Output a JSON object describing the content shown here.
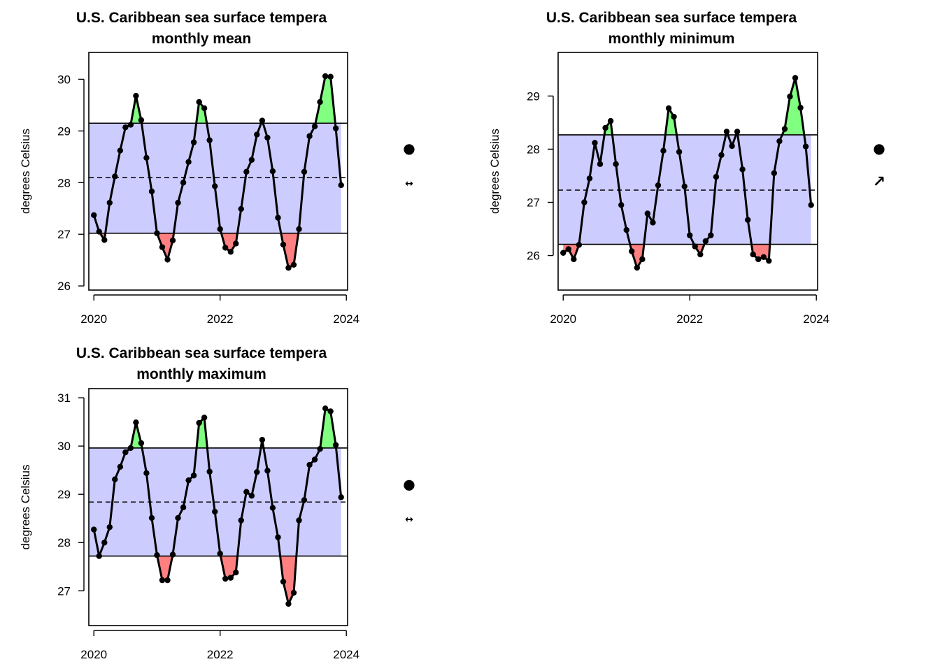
{
  "chart_data": [
    {
      "type": "line",
      "title_line1": "U.S. Caribbean sea surface tempera",
      "title_line2": "monthly mean",
      "ylabel": "degrees Celsius",
      "xlim": [
        2019.92,
        2024.02
      ],
      "ylim": [
        25.92,
        30.52
      ],
      "xticks": [
        "2020",
        "2022",
        "2024"
      ],
      "yticks": [
        "26",
        "27",
        "28",
        "29",
        "30"
      ],
      "upper": 29.15,
      "lower": 27.02,
      "mean": 28.1,
      "trend_symbol": "●",
      "trend_direction_symbol": "↔",
      "shade_color": "#CCCCFF",
      "above_color": "#80FF80",
      "below_color": "#FF8080",
      "series": [
        {
          "x": [
            2020.0,
            2020.083,
            2020.167,
            2020.25,
            2020.333,
            2020.417,
            2020.5,
            2020.583,
            2020.667,
            2020.75,
            2020.833,
            2020.917,
            2021.0,
            2021.083,
            2021.167,
            2021.25,
            2021.333,
            2021.417,
            2021.5,
            2021.583,
            2021.667,
            2021.75,
            2021.833,
            2021.917,
            2022.0,
            2022.083,
            2022.167,
            2022.25,
            2022.333,
            2022.417,
            2022.5,
            2022.583,
            2022.667,
            2022.75,
            2022.833,
            2022.917,
            2023.0,
            2023.083,
            2023.167,
            2023.25,
            2023.333,
            2023.417,
            2023.5,
            2023.583,
            2023.667,
            2023.75,
            2023.833,
            2023.917
          ],
          "y": [
            27.37,
            27.05,
            26.89,
            27.61,
            28.12,
            28.62,
            29.07,
            29.12,
            29.68,
            29.21,
            28.48,
            27.83,
            27.02,
            26.75,
            26.51,
            26.88,
            27.61,
            28.0,
            28.4,
            28.78,
            29.56,
            29.44,
            28.82,
            27.93,
            27.1,
            26.74,
            26.66,
            26.82,
            27.49,
            28.21,
            28.44,
            28.93,
            29.2,
            28.87,
            28.22,
            27.32,
            26.8,
            26.35,
            26.41,
            27.1,
            28.21,
            28.9,
            29.09,
            29.56,
            30.06,
            30.05,
            29.05,
            27.95
          ]
        }
      ]
    },
    {
      "type": "line",
      "title_line1": "U.S. Caribbean sea surface tempera",
      "title_line2": "monthly minimum",
      "ylabel": "degrees Celsius",
      "xlim": [
        2019.92,
        2024.02
      ],
      "ylim": [
        25.35,
        29.82
      ],
      "xticks": [
        "2020",
        "2022",
        "2024"
      ],
      "yticks": [
        "26",
        "27",
        "28",
        "29"
      ],
      "upper": 28.27,
      "lower": 26.21,
      "mean": 27.23,
      "trend_symbol": "●",
      "trend_direction_symbol": "↗",
      "shade_color": "#CCCCFF",
      "above_color": "#80FF80",
      "below_color": "#FF8080",
      "series": [
        {
          "x": [
            2020.0,
            2020.083,
            2020.167,
            2020.25,
            2020.333,
            2020.417,
            2020.5,
            2020.583,
            2020.667,
            2020.75,
            2020.833,
            2020.917,
            2021.0,
            2021.083,
            2021.167,
            2021.25,
            2021.333,
            2021.417,
            2021.5,
            2021.583,
            2021.667,
            2021.75,
            2021.833,
            2021.917,
            2022.0,
            2022.083,
            2022.167,
            2022.25,
            2022.333,
            2022.417,
            2022.5,
            2022.583,
            2022.667,
            2022.75,
            2022.833,
            2022.917,
            2023.0,
            2023.083,
            2023.167,
            2023.25,
            2023.333,
            2023.417,
            2023.5,
            2023.583,
            2023.667,
            2023.75,
            2023.833,
            2023.917
          ],
          "y": [
            26.05,
            26.12,
            25.93,
            26.2,
            27.0,
            27.45,
            28.12,
            27.72,
            28.4,
            28.53,
            27.72,
            26.95,
            26.48,
            26.08,
            25.77,
            25.93,
            26.79,
            26.62,
            27.32,
            27.97,
            28.77,
            28.61,
            27.95,
            27.3,
            26.38,
            26.17,
            26.02,
            26.27,
            26.38,
            27.48,
            27.89,
            28.33,
            28.06,
            28.33,
            27.62,
            26.67,
            26.02,
            25.93,
            25.97,
            25.9,
            27.55,
            28.15,
            28.38,
            28.99,
            29.34,
            28.78,
            28.05,
            26.95
          ]
        }
      ]
    },
    {
      "type": "line",
      "title_line1": "U.S. Caribbean sea surface tempera",
      "title_line2": "monthly maximum",
      "ylabel": "degrees Celsius",
      "xlim": [
        2019.92,
        2024.02
      ],
      "ylim": [
        26.28,
        31.19
      ],
      "xticks": [
        "2020",
        "2022",
        "2024"
      ],
      "yticks": [
        "27",
        "28",
        "29",
        "30",
        "31"
      ],
      "upper": 29.96,
      "lower": 27.72,
      "mean": 28.84,
      "trend_symbol": "●",
      "trend_direction_symbol": "↔",
      "shade_color": "#CCCCFF",
      "above_color": "#80FF80",
      "below_color": "#FF8080",
      "series": [
        {
          "x": [
            2020.0,
            2020.083,
            2020.167,
            2020.25,
            2020.333,
            2020.417,
            2020.5,
            2020.583,
            2020.667,
            2020.75,
            2020.833,
            2020.917,
            2021.0,
            2021.083,
            2021.167,
            2021.25,
            2021.333,
            2021.417,
            2021.5,
            2021.583,
            2021.667,
            2021.75,
            2021.833,
            2021.917,
            2022.0,
            2022.083,
            2022.167,
            2022.25,
            2022.333,
            2022.417,
            2022.5,
            2022.583,
            2022.667,
            2022.75,
            2022.833,
            2022.917,
            2023.0,
            2023.083,
            2023.167,
            2023.25,
            2023.333,
            2023.417,
            2023.5,
            2023.583,
            2023.667,
            2023.75,
            2023.833,
            2023.917
          ],
          "y": [
            28.27,
            27.72,
            28.0,
            28.32,
            29.31,
            29.57,
            29.87,
            29.96,
            30.49,
            30.06,
            29.44,
            28.51,
            27.74,
            27.22,
            27.22,
            27.75,
            28.51,
            28.73,
            29.29,
            29.39,
            30.48,
            30.59,
            29.47,
            28.64,
            27.77,
            27.25,
            27.27,
            27.38,
            28.46,
            29.05,
            28.97,
            29.46,
            30.13,
            29.49,
            28.72,
            28.11,
            27.19,
            26.73,
            26.96,
            28.46,
            28.88,
            29.61,
            29.72,
            29.94,
            30.78,
            30.72,
            30.02,
            28.94
          ]
        }
      ]
    }
  ]
}
